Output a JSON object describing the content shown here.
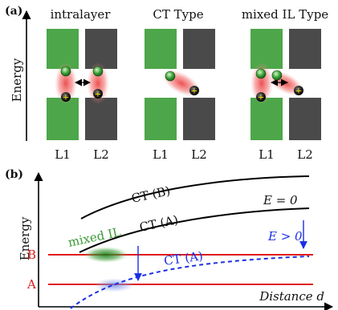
{
  "panel_a": {
    "label": "(a)",
    "axis_label": "Energy",
    "types": [
      "intralayer",
      "CT Type",
      "mixed IL Type"
    ],
    "layer_labels": [
      "L1",
      "L2"
    ],
    "colors": {
      "layer1": "#4da64a",
      "layer2": "#4a4a4a",
      "glow": "#f26b6b"
    }
  },
  "panel_b": {
    "label": "(b)",
    "axis_label": "Energy",
    "x_label": "Distance d",
    "level_labels": {
      "B": "B",
      "A": "A"
    },
    "curve_labels": {
      "ct_b": "CT (B)",
      "ct_a": "CT (A)",
      "ct_a_low": "CT (A)"
    },
    "region_label": "mixed IL",
    "e0_label": "E = 0",
    "egt0_label": "E > 0",
    "colors": {
      "level": "#e01b1b",
      "curve": "#000000",
      "dashed": "#1a2ee6",
      "mixed": "#3a9a35",
      "blob_blue": "#7a8ee6"
    }
  }
}
